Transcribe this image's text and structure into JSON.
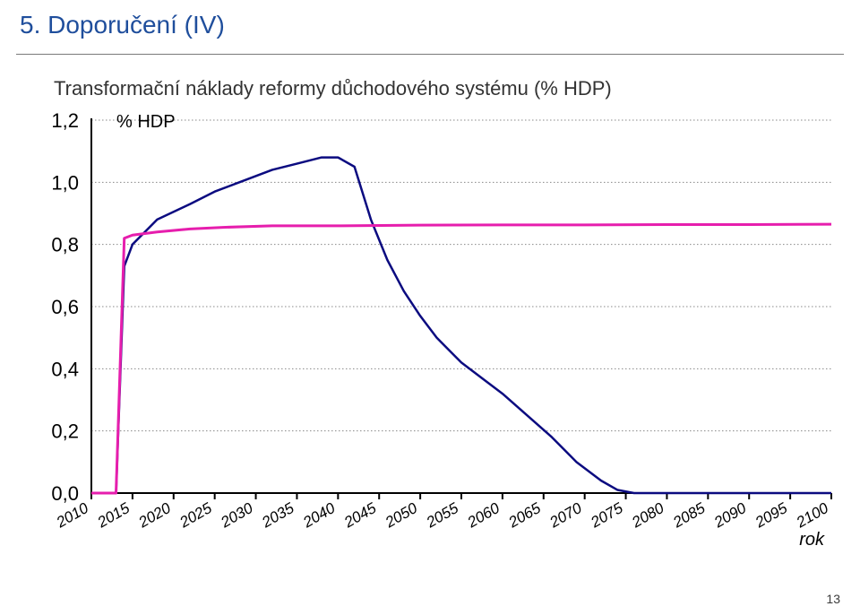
{
  "slide": {
    "title": "5. Doporučení (IV)",
    "subtitle": "Transformační náklady reformy důchodového systému (% HDP)",
    "page_number": "13"
  },
  "chart": {
    "type": "line",
    "axis_unit_label": "% HDP",
    "xaxis_title": "rok",
    "background_color": "#ffffff",
    "grid_color": "#888888",
    "axis_color": "#000000",
    "y": {
      "min": 0.0,
      "max": 1.2,
      "ticks": [
        0.0,
        0.2,
        0.4,
        0.6,
        0.8,
        1.0,
        1.2
      ],
      "tick_labels": [
        "0,0",
        "0,2",
        "0,4",
        "0,6",
        "0,8",
        "1,0",
        "1,2"
      ],
      "label_fontsize": 22
    },
    "x": {
      "min": 2010,
      "max": 2100,
      "ticks": [
        2010,
        2015,
        2020,
        2025,
        2030,
        2035,
        2040,
        2045,
        2050,
        2055,
        2060,
        2065,
        2070,
        2075,
        2080,
        2085,
        2090,
        2095,
        2100
      ],
      "label_fontsize": 17,
      "label_rotation_deg": -30
    },
    "series": [
      {
        "name": "series_a",
        "color": "#0b0b80",
        "line_width": 2.5,
        "points": [
          [
            2010,
            0.0
          ],
          [
            2012,
            0.0
          ],
          [
            2013,
            0.0
          ],
          [
            2014,
            0.73
          ],
          [
            2015,
            0.8
          ],
          [
            2018,
            0.88
          ],
          [
            2022,
            0.93
          ],
          [
            2025,
            0.97
          ],
          [
            2028,
            1.0
          ],
          [
            2032,
            1.04
          ],
          [
            2035,
            1.06
          ],
          [
            2038,
            1.08
          ],
          [
            2040,
            1.08
          ],
          [
            2042,
            1.05
          ],
          [
            2044,
            0.88
          ],
          [
            2046,
            0.75
          ],
          [
            2048,
            0.65
          ],
          [
            2050,
            0.57
          ],
          [
            2052,
            0.5
          ],
          [
            2055,
            0.42
          ],
          [
            2058,
            0.36
          ],
          [
            2060,
            0.32
          ],
          [
            2063,
            0.25
          ],
          [
            2066,
            0.18
          ],
          [
            2069,
            0.1
          ],
          [
            2072,
            0.04
          ],
          [
            2074,
            0.01
          ],
          [
            2076,
            0.0
          ],
          [
            2100,
            0.0
          ]
        ]
      },
      {
        "name": "series_b",
        "color": "#e61ead",
        "line_width": 3,
        "points": [
          [
            2010,
            0.0
          ],
          [
            2012,
            0.0
          ],
          [
            2013,
            0.0
          ],
          [
            2014,
            0.82
          ],
          [
            2015,
            0.83
          ],
          [
            2018,
            0.84
          ],
          [
            2022,
            0.85
          ],
          [
            2026,
            0.855
          ],
          [
            2032,
            0.86
          ],
          [
            2040,
            0.86
          ],
          [
            2050,
            0.862
          ],
          [
            2060,
            0.863
          ],
          [
            2070,
            0.863
          ],
          [
            2080,
            0.864
          ],
          [
            2090,
            0.864
          ],
          [
            2100,
            0.865
          ]
        ]
      }
    ]
  }
}
